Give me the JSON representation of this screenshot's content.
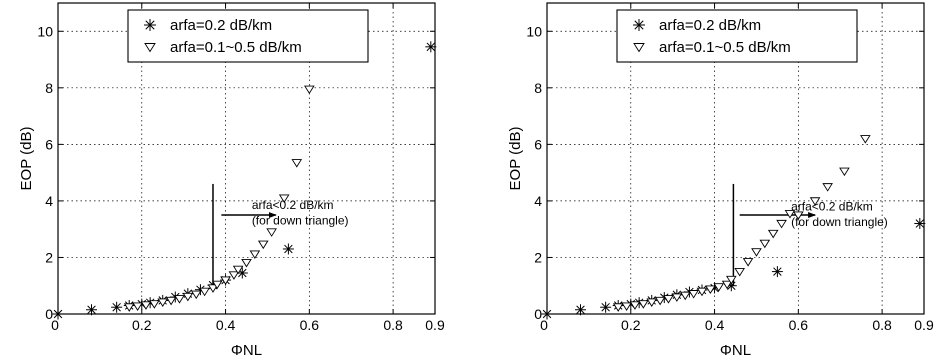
{
  "chart_data": [
    {
      "type": "scatter",
      "xlabel": "ΦNL",
      "ylabel": "EOP (dB)",
      "xlim": [
        0,
        0.9
      ],
      "ylim": [
        0,
        11
      ],
      "xticks": [
        "0",
        "0.2",
        "0.4",
        "0.6",
        "0.8",
        "0.9"
      ],
      "yticks": [
        "0",
        "2",
        "4",
        "6",
        "8",
        "10"
      ],
      "grid": true,
      "legend_position": "top-center",
      "series": [
        {
          "name": "arfa=0.2 dB/km",
          "marker": "asterisk",
          "points": [
            [
              0,
              0
            ],
            [
              0.08,
              0.15
            ],
            [
              0.14,
              0.24
            ],
            [
              0.17,
              0.3
            ],
            [
              0.2,
              0.35
            ],
            [
              0.22,
              0.4
            ],
            [
              0.25,
              0.48
            ],
            [
              0.28,
              0.6
            ],
            [
              0.31,
              0.72
            ],
            [
              0.34,
              0.86
            ],
            [
              0.37,
              1.02
            ],
            [
              0.4,
              1.2
            ],
            [
              0.44,
              1.45
            ],
            [
              0.55,
              2.3
            ],
            [
              0.89,
              9.45
            ]
          ]
        },
        {
          "name": "arfa=0.1~0.5 dB/km",
          "marker": "triangle-down",
          "points": [
            [
              0.17,
              0.25
            ],
            [
              0.19,
              0.28
            ],
            [
              0.21,
              0.32
            ],
            [
              0.23,
              0.36
            ],
            [
              0.25,
              0.42
            ],
            [
              0.27,
              0.48
            ],
            [
              0.29,
              0.54
            ],
            [
              0.31,
              0.62
            ],
            [
              0.33,
              0.7
            ],
            [
              0.35,
              0.8
            ],
            [
              0.37,
              0.92
            ],
            [
              0.38,
              1.05
            ],
            [
              0.4,
              1.2
            ],
            [
              0.42,
              1.38
            ],
            [
              0.43,
              1.58
            ],
            [
              0.45,
              1.82
            ],
            [
              0.47,
              2.12
            ],
            [
              0.49,
              2.47
            ],
            [
              0.51,
              2.9
            ],
            [
              0.54,
              4.1
            ],
            [
              0.57,
              5.35
            ],
            [
              0.6,
              7.95
            ]
          ]
        }
      ],
      "annotations": [
        {
          "text": "arfa<0.2 dB/km",
          "x": 0.52,
          "y": 3.85
        },
        {
          "text": "(for down triangle)",
          "x": 0.52,
          "y": 3.3
        }
      ],
      "marker_line": {
        "x": 0.37,
        "y0": 1.0,
        "y1": 4.6
      },
      "arrow": {
        "x0": 0.39,
        "x1": 0.52,
        "y": 3.5
      }
    },
    {
      "type": "scatter",
      "xlabel": "ΦNL",
      "ylabel": "EOP (dB)",
      "xlim": [
        0,
        0.9
      ],
      "ylim": [
        0,
        11
      ],
      "xticks": [
        "0",
        "0.2",
        "0.4",
        "0.6",
        "0.8",
        "0.9"
      ],
      "yticks": [
        "0",
        "2",
        "4",
        "6",
        "8",
        "10"
      ],
      "grid": true,
      "legend_position": "top-center",
      "series": [
        {
          "name": "arfa=0.2 dB/km",
          "marker": "asterisk",
          "points": [
            [
              0,
              0
            ],
            [
              0.08,
              0.15
            ],
            [
              0.14,
              0.24
            ],
            [
              0.17,
              0.3
            ],
            [
              0.2,
              0.35
            ],
            [
              0.22,
              0.4
            ],
            [
              0.25,
              0.48
            ],
            [
              0.28,
              0.58
            ],
            [
              0.31,
              0.68
            ],
            [
              0.34,
              0.78
            ],
            [
              0.37,
              0.85
            ],
            [
              0.4,
              0.92
            ],
            [
              0.44,
              1.0
            ],
            [
              0.55,
              1.5
            ],
            [
              0.89,
              3.2
            ]
          ]
        },
        {
          "name": "arfa=0.1~0.5 dB/km",
          "marker": "triangle-down",
          "points": [
            [
              0.17,
              0.25
            ],
            [
              0.19,
              0.28
            ],
            [
              0.21,
              0.32
            ],
            [
              0.23,
              0.36
            ],
            [
              0.25,
              0.42
            ],
            [
              0.27,
              0.48
            ],
            [
              0.29,
              0.54
            ],
            [
              0.31,
              0.6
            ],
            [
              0.33,
              0.66
            ],
            [
              0.35,
              0.72
            ],
            [
              0.37,
              0.8
            ],
            [
              0.39,
              0.88
            ],
            [
              0.41,
              0.96
            ],
            [
              0.43,
              1.05
            ],
            [
              0.44,
              1.22
            ],
            [
              0.46,
              1.5
            ],
            [
              0.48,
              1.85
            ],
            [
              0.5,
              2.2
            ],
            [
              0.52,
              2.5
            ],
            [
              0.54,
              2.85
            ],
            [
              0.56,
              3.2
            ],
            [
              0.58,
              3.55
            ],
            [
              0.6,
              3.5
            ],
            [
              0.64,
              4.0
            ],
            [
              0.67,
              4.5
            ],
            [
              0.71,
              5.05
            ],
            [
              0.76,
              6.2
            ]
          ]
        }
      ],
      "annotations": [
        {
          "text": "arfa<0.2 dB/km",
          "x": 0.64,
          "y": 3.8
        },
        {
          "text": "(for down triangle)",
          "x": 0.64,
          "y": 3.25
        }
      ],
      "marker_line": {
        "x": 0.445,
        "y0": 1.0,
        "y1": 4.6
      },
      "arrow": {
        "x0": 0.46,
        "x1": 0.64,
        "y": 3.5
      }
    }
  ]
}
